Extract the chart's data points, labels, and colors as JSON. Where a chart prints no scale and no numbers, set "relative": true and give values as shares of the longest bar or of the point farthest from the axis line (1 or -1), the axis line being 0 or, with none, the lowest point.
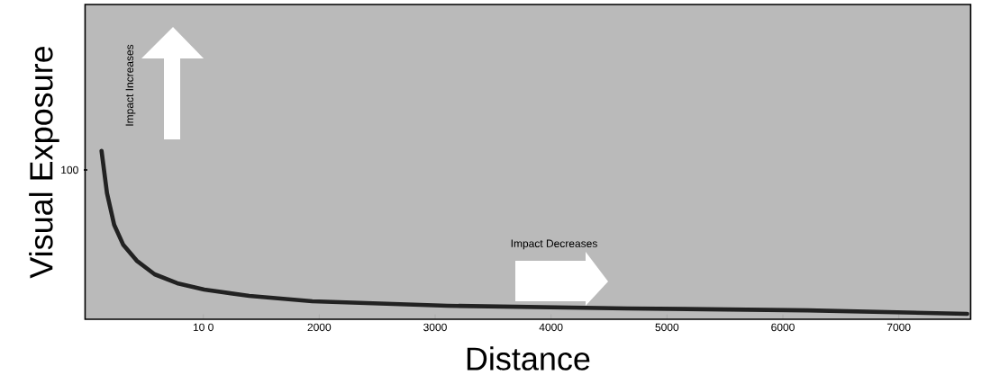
{
  "chart_data": {
    "type": "line",
    "xlabel": "Distance",
    "ylabel": "Visual Exposure",
    "relative": true,
    "xlim": [
      -20,
      7620
    ],
    "xticks": [
      {
        "value": 1000,
        "label": "10 0"
      },
      2000,
      3000,
      4000,
      5000,
      6000,
      7000
    ],
    "series": [
      {
        "color": "#222222",
        "x": [
          122,
          169,
          231,
          308,
          425,
          580,
          775,
          1008,
          1396,
          1940,
          3106,
          4660,
          6214,
          7590
        ],
        "values": [
          1,
          0.749,
          0.561,
          0.444,
          0.348,
          0.267,
          0.214,
          0.176,
          0.139,
          0.107,
          0.08,
          0.064,
          0.053,
          0.032
        ]
      }
    ],
    "annotations": [
      "100",
      "Impact Increases",
      "Impact Decreases"
    ]
  }
}
